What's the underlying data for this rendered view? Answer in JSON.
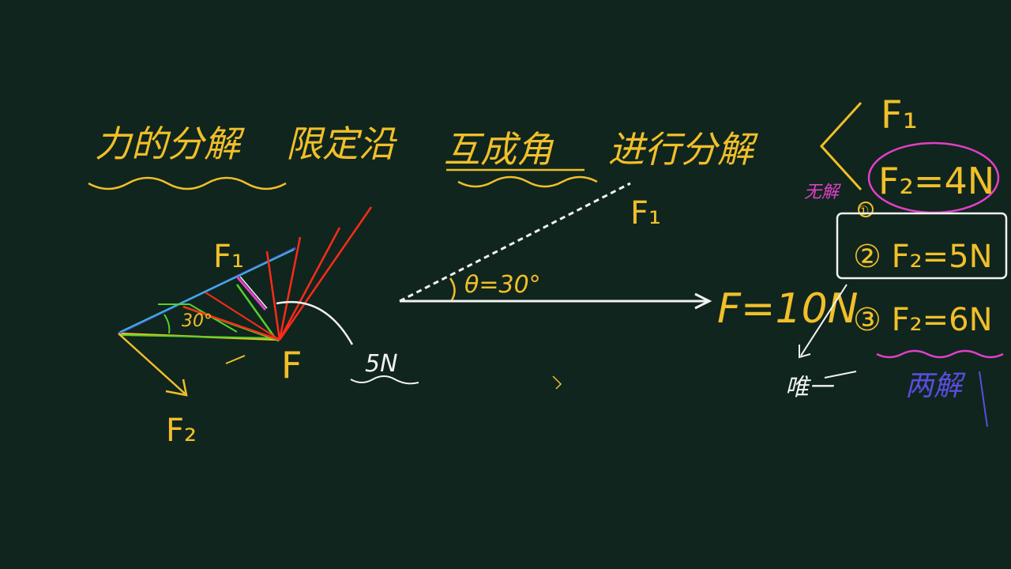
{
  "colors": {
    "background": "#10251d",
    "chalk_yellow": "#f1bf2a",
    "chalk_white": "#f2f2f2",
    "chalk_magenta": "#e33fc8",
    "chalk_red": "#ff2a1a",
    "chalk_blue": "#5a4de0",
    "chalk_green": "#55d12a",
    "chalk_cyan": "#35b8d8"
  },
  "title": {
    "part1": "力的分解",
    "part2": "限定沿",
    "part3": "互成角",
    "part4": "进行分解"
  },
  "main_diagram": {
    "angle_label": "θ=30°",
    "vector_f_label": "F=10N",
    "vector_f1_label": "F₁"
  },
  "left_diagram": {
    "f1_label": "F₁",
    "f2_label": "F₂",
    "f_label": "F",
    "angle_label": "30°",
    "min_value_label": "5N"
  },
  "cases": {
    "f1_label": "F₁",
    "case1_marker": "①",
    "case1": "F₂=4N",
    "case1_note": "无解",
    "case2": "② F₂=5N",
    "case3": "③ F₂=6N",
    "case3_note": "两解",
    "case2_note": "唯一"
  }
}
